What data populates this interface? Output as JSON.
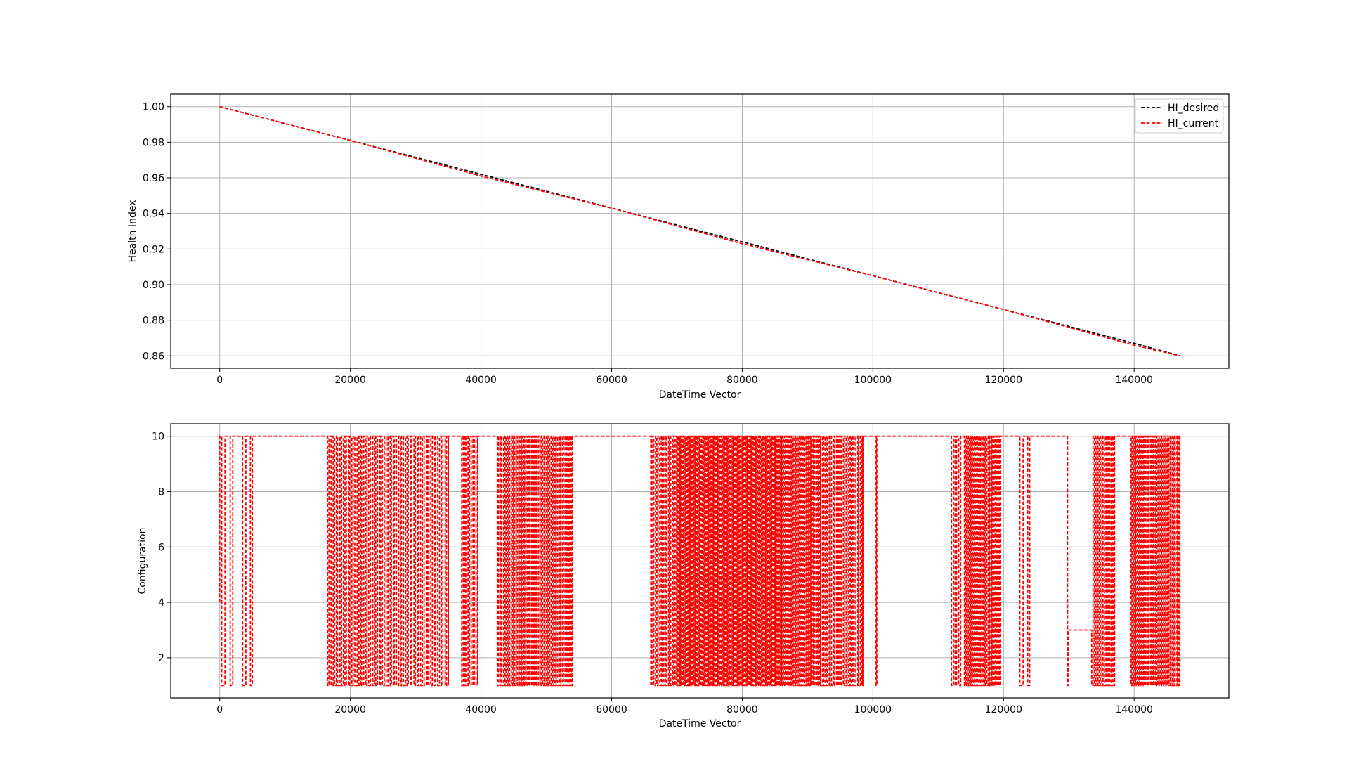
{
  "chart_data": [
    {
      "type": "line",
      "title": "",
      "xlabel": "DateTime Vector",
      "ylabel": "Health Index",
      "xlim": [
        -7500,
        154500
      ],
      "ylim": [
        0.853,
        1.007
      ],
      "xticks": [
        0,
        20000,
        40000,
        60000,
        80000,
        100000,
        120000,
        140000
      ],
      "yticks": [
        0.86,
        0.88,
        0.9,
        0.92,
        0.94,
        0.96,
        0.98,
        1.0
      ],
      "ytick_labels": [
        "0.86",
        "0.88",
        "0.90",
        "0.92",
        "0.94",
        "0.96",
        "0.98",
        "1.00"
      ],
      "grid": true,
      "legend": "top-right",
      "series": [
        {
          "name": "HI_desired",
          "color": "#000000",
          "style": "dashed",
          "x": [
            0,
            20000,
            40000,
            60000,
            80000,
            100000,
            120000,
            140000,
            147000
          ],
          "y": [
            1.0,
            0.981,
            0.962,
            0.943,
            0.924,
            0.905,
            0.886,
            0.867,
            0.86
          ]
        },
        {
          "name": "HI_current",
          "color": "#ff0000",
          "style": "dashed",
          "x": [
            0,
            20000,
            40000,
            60000,
            80000,
            100000,
            120000,
            140000,
            147000
          ],
          "y": [
            1.0,
            0.981,
            0.961,
            0.943,
            0.923,
            0.905,
            0.886,
            0.866,
            0.86
          ]
        }
      ]
    },
    {
      "type": "line",
      "title": "",
      "xlabel": "DateTime Vector",
      "ylabel": "Configuration",
      "xlim": [
        -7500,
        154500
      ],
      "ylim": [
        0.55,
        10.45
      ],
      "xticks": [
        0,
        20000,
        40000,
        60000,
        80000,
        100000,
        120000,
        140000
      ],
      "yticks": [
        2,
        4,
        6,
        8,
        10
      ],
      "ytick_labels": [
        "2",
        "4",
        "6",
        "8",
        "10"
      ],
      "grid": true,
      "color": "#ff0000",
      "style": "dashed",
      "low_value": 1,
      "high_value": 10,
      "dense_segments": [
        [
          16500,
          35000,
          70
        ],
        [
          37000,
          39500,
          10
        ],
        [
          42500,
          54000,
          60
        ],
        [
          66000,
          70000,
          18
        ],
        [
          70000,
          86000,
          140
        ],
        [
          86000,
          92000,
          40
        ],
        [
          92000,
          98500,
          30
        ],
        [
          112000,
          113500,
          5
        ],
        [
          114000,
          119500,
          35
        ],
        [
          133500,
          137000,
          18
        ],
        [
          139500,
          147000,
          45
        ]
      ],
      "single_switches": [
        [
          0,
          4
        ],
        [
          0,
          10
        ],
        [
          300,
          1
        ],
        [
          800,
          10
        ],
        [
          1600,
          1
        ],
        [
          2000,
          10
        ],
        [
          3500,
          1
        ],
        [
          4000,
          10
        ],
        [
          4700,
          1
        ],
        [
          5000,
          10
        ],
        [
          100500,
          1
        ],
        [
          100600,
          10
        ],
        [
          122500,
          1
        ],
        [
          123000,
          10
        ],
        [
          123700,
          1
        ],
        [
          124000,
          10
        ],
        [
          129800,
          1
        ],
        [
          129900,
          3
        ]
      ]
    }
  ]
}
